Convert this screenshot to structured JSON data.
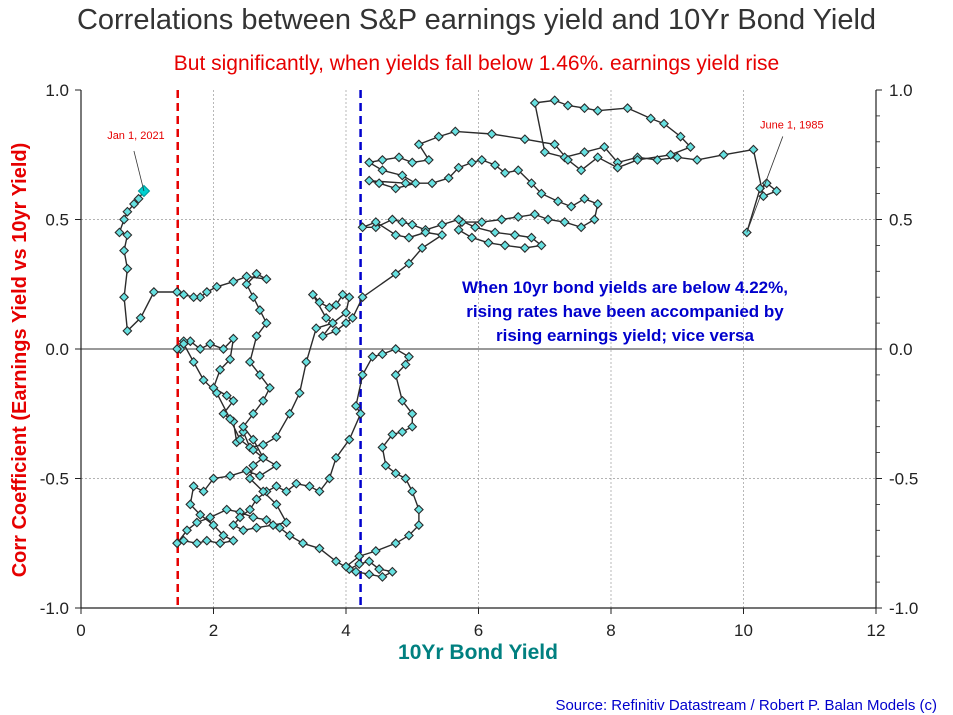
{
  "chart_data": {
    "type": "scatter",
    "title": "Correlations between S&P earnings yield and 10Yr Bond Yield",
    "subtitle": "But significantly, when yields fall below 1.46%. earnings yield rise",
    "xlabel": "10Yr Bond Yield",
    "ylabel": "Corr Coefficient (Earnings Yield vs 10yr Yield)",
    "xlim": [
      0,
      12
    ],
    "ylim": [
      -1.0,
      1.0
    ],
    "xticks": [
      "0",
      "2",
      "4",
      "6",
      "8",
      "10",
      "12"
    ],
    "yticks_left": [
      "1.0",
      "0.5",
      "0.0",
      "-0.5",
      "-1.0"
    ],
    "yticks_right": [
      "1.0",
      "0.5",
      "0.0",
      "-0.5",
      "-1.0"
    ],
    "grid": true,
    "connected": true,
    "marker": "diamond",
    "marker_color": "#66e0e0",
    "line_color": "#2b2b2b",
    "vlines": [
      {
        "x": 1.46,
        "color": "#e60000",
        "style": "dashed"
      },
      {
        "x": 4.22,
        "color": "#0000cc",
        "style": "dashed"
      }
    ],
    "annotations": [
      {
        "text": "Jan 1, 2021",
        "x": 0.95,
        "y": 0.61,
        "color": "#e60000"
      },
      {
        "text": "June 1, 1985",
        "x": 10.05,
        "y": 0.45,
        "color": "#e60000"
      }
    ],
    "note": "When 10yr bond yields are below 4.22%, rising rates have been accompanied by rising earnings yield; vice versa",
    "note_lines": [
      "When 10yr bond yields are below 4.22%,",
      "rising rates have been accompanied by",
      "rising earnings yield; vice versa"
    ],
    "note_color": "#0000cc",
    "source": "Source: Refinitiv Datastream / Robert P. Balan Models (c)",
    "series": [
      {
        "points": [
          [
            10.05,
            0.45
          ],
          [
            10.25,
            0.62
          ],
          [
            10.35,
            0.64
          ],
          [
            10.5,
            0.61
          ],
          [
            10.3,
            0.59
          ],
          [
            10.15,
            0.77
          ],
          [
            9.7,
            0.75
          ],
          [
            9.3,
            0.73
          ],
          [
            9.0,
            0.74
          ],
          [
            8.7,
            0.73
          ],
          [
            8.4,
            0.74
          ],
          [
            8.1,
            0.72
          ],
          [
            7.9,
            0.78
          ],
          [
            7.6,
            0.76
          ],
          [
            7.3,
            0.74
          ],
          [
            7.0,
            0.76
          ],
          [
            6.85,
            0.95
          ],
          [
            7.15,
            0.96
          ],
          [
            7.35,
            0.94
          ],
          [
            7.6,
            0.93
          ],
          [
            7.8,
            0.92
          ],
          [
            8.25,
            0.93
          ],
          [
            8.6,
            0.89
          ],
          [
            8.8,
            0.87
          ],
          [
            9.05,
            0.82
          ],
          [
            9.2,
            0.78
          ],
          [
            8.9,
            0.75
          ],
          [
            8.4,
            0.73
          ],
          [
            8.1,
            0.7
          ],
          [
            7.8,
            0.74
          ],
          [
            7.55,
            0.69
          ],
          [
            7.35,
            0.73
          ],
          [
            7.15,
            0.79
          ],
          [
            6.7,
            0.81
          ],
          [
            6.2,
            0.83
          ],
          [
            5.65,
            0.84
          ],
          [
            5.4,
            0.82
          ],
          [
            5.1,
            0.79
          ],
          [
            5.25,
            0.73
          ],
          [
            5.0,
            0.72
          ],
          [
            4.8,
            0.74
          ],
          [
            4.55,
            0.73
          ],
          [
            4.35,
            0.72
          ],
          [
            4.55,
            0.69
          ],
          [
            4.85,
            0.67
          ],
          [
            5.05,
            0.64
          ],
          [
            4.75,
            0.62
          ],
          [
            4.5,
            0.64
          ],
          [
            4.35,
            0.65
          ],
          [
            4.9,
            0.64
          ],
          [
            5.3,
            0.64
          ],
          [
            5.55,
            0.66
          ],
          [
            5.7,
            0.7
          ],
          [
            5.9,
            0.72
          ],
          [
            6.05,
            0.73
          ],
          [
            6.25,
            0.71
          ],
          [
            6.4,
            0.68
          ],
          [
            6.6,
            0.69
          ],
          [
            6.8,
            0.64
          ],
          [
            6.95,
            0.6
          ],
          [
            7.2,
            0.57
          ],
          [
            7.4,
            0.55
          ],
          [
            7.6,
            0.58
          ],
          [
            7.8,
            0.56
          ],
          [
            7.75,
            0.5
          ],
          [
            7.55,
            0.47
          ],
          [
            7.3,
            0.49
          ],
          [
            7.05,
            0.5
          ],
          [
            6.85,
            0.52
          ],
          [
            6.6,
            0.51
          ],
          [
            6.35,
            0.5
          ],
          [
            6.05,
            0.49
          ],
          [
            5.75,
            0.49
          ],
          [
            5.7,
            0.46
          ],
          [
            5.9,
            0.43
          ],
          [
            6.15,
            0.41
          ],
          [
            6.4,
            0.4
          ],
          [
            6.7,
            0.39
          ],
          [
            6.95,
            0.4
          ],
          [
            6.8,
            0.43
          ],
          [
            6.55,
            0.44
          ],
          [
            6.25,
            0.45
          ],
          [
            5.95,
            0.47
          ],
          [
            5.7,
            0.5
          ],
          [
            5.45,
            0.48
          ],
          [
            5.2,
            0.46
          ],
          [
            5.0,
            0.48
          ],
          [
            4.85,
            0.49
          ],
          [
            4.7,
            0.5
          ],
          [
            4.45,
            0.47
          ],
          [
            4.25,
            0.47
          ],
          [
            4.45,
            0.49
          ],
          [
            4.75,
            0.44
          ],
          [
            4.95,
            0.43
          ],
          [
            5.2,
            0.45
          ],
          [
            5.45,
            0.44
          ],
          [
            5.15,
            0.39
          ],
          [
            4.95,
            0.33
          ],
          [
            4.75,
            0.29
          ],
          [
            4.25,
            0.2
          ],
          [
            4.1,
            0.12
          ],
          [
            4.0,
            0.1
          ],
          [
            3.85,
            0.07
          ],
          [
            3.65,
            0.05
          ],
          [
            3.8,
            0.1
          ],
          [
            4.0,
            0.14
          ],
          [
            4.05,
            0.2
          ],
          [
            3.95,
            0.21
          ],
          [
            3.85,
            0.17
          ],
          [
            3.75,
            0.16
          ],
          [
            3.6,
            0.18
          ],
          [
            3.5,
            0.21
          ],
          [
            3.7,
            0.12
          ],
          [
            3.8,
            0.1
          ],
          [
            3.55,
            0.08
          ],
          [
            3.4,
            -0.05
          ],
          [
            3.3,
            -0.17
          ],
          [
            3.15,
            -0.25
          ],
          [
            2.95,
            -0.34
          ],
          [
            2.75,
            -0.37
          ],
          [
            2.55,
            -0.38
          ],
          [
            2.45,
            -0.32
          ],
          [
            2.35,
            -0.36
          ],
          [
            2.3,
            -0.28
          ],
          [
            2.15,
            -0.25
          ],
          [
            2.3,
            -0.2
          ],
          [
            2.2,
            -0.18
          ],
          [
            2.0,
            -0.15
          ],
          [
            2.1,
            -0.08
          ],
          [
            2.25,
            -0.04
          ],
          [
            2.3,
            0.04
          ],
          [
            2.15,
            0.0
          ],
          [
            1.95,
            0.02
          ],
          [
            1.8,
            0.0
          ],
          [
            1.65,
            0.03
          ],
          [
            1.55,
            0.03
          ],
          [
            1.5,
            0.0
          ],
          [
            1.45,
            0.0
          ],
          [
            1.55,
            0.02
          ],
          [
            1.7,
            -0.05
          ],
          [
            1.85,
            -0.12
          ],
          [
            2.05,
            -0.17
          ],
          [
            2.25,
            -0.27
          ],
          [
            2.4,
            -0.35
          ],
          [
            2.6,
            -0.39
          ],
          [
            2.75,
            -0.42
          ],
          [
            2.95,
            -0.45
          ],
          [
            2.7,
            -0.49
          ],
          [
            2.5,
            -0.47
          ],
          [
            2.25,
            -0.49
          ],
          [
            2.0,
            -0.5
          ],
          [
            1.85,
            -0.55
          ],
          [
            1.7,
            -0.53
          ],
          [
            1.65,
            -0.6
          ],
          [
            1.8,
            -0.64
          ],
          [
            2.0,
            -0.68
          ],
          [
            2.15,
            -0.72
          ],
          [
            2.3,
            -0.74
          ],
          [
            2.1,
            -0.75
          ],
          [
            1.9,
            -0.74
          ],
          [
            1.75,
            -0.75
          ],
          [
            1.55,
            -0.74
          ],
          [
            1.45,
            -0.75
          ],
          [
            1.6,
            -0.7
          ],
          [
            1.75,
            -0.67
          ],
          [
            1.95,
            -0.65
          ],
          [
            2.2,
            -0.62
          ],
          [
            2.4,
            -0.63
          ],
          [
            2.6,
            -0.65
          ],
          [
            2.8,
            -0.66
          ],
          [
            3.0,
            -0.69
          ],
          [
            3.15,
            -0.72
          ],
          [
            3.35,
            -0.75
          ],
          [
            3.6,
            -0.77
          ],
          [
            3.85,
            -0.82
          ],
          [
            4.05,
            -0.85
          ],
          [
            4.2,
            -0.83
          ],
          [
            4.35,
            -0.82
          ],
          [
            4.5,
            -0.85
          ],
          [
            4.7,
            -0.86
          ],
          [
            4.55,
            -0.88
          ],
          [
            4.35,
            -0.87
          ],
          [
            4.15,
            -0.86
          ],
          [
            4.0,
            -0.84
          ],
          [
            4.2,
            -0.8
          ],
          [
            4.45,
            -0.78
          ],
          [
            4.75,
            -0.75
          ],
          [
            4.95,
            -0.72
          ],
          [
            5.1,
            -0.68
          ],
          [
            5.1,
            -0.62
          ],
          [
            5.0,
            -0.55
          ],
          [
            4.9,
            -0.5
          ],
          [
            4.75,
            -0.48
          ],
          [
            4.6,
            -0.45
          ],
          [
            4.55,
            -0.38
          ],
          [
            4.7,
            -0.33
          ],
          [
            4.85,
            -0.32
          ],
          [
            5.0,
            -0.3
          ],
          [
            5.0,
            -0.25
          ],
          [
            4.85,
            -0.2
          ],
          [
            4.75,
            -0.1
          ],
          [
            4.9,
            -0.06
          ],
          [
            4.95,
            -0.03
          ],
          [
            4.75,
            0.0
          ],
          [
            4.55,
            -0.02
          ],
          [
            4.4,
            -0.03
          ],
          [
            4.25,
            -0.1
          ],
          [
            4.15,
            -0.22
          ],
          [
            4.22,
            -0.25
          ],
          [
            4.05,
            -0.35
          ],
          [
            3.85,
            -0.42
          ],
          [
            3.75,
            -0.5
          ],
          [
            3.6,
            -0.55
          ],
          [
            3.45,
            -0.53
          ],
          [
            3.25,
            -0.52
          ],
          [
            3.1,
            -0.55
          ],
          [
            2.95,
            -0.53
          ],
          [
            2.8,
            -0.55
          ],
          [
            2.65,
            -0.58
          ],
          [
            2.55,
            -0.62
          ],
          [
            2.4,
            -0.65
          ],
          [
            2.3,
            -0.68
          ],
          [
            2.45,
            -0.7
          ],
          [
            2.65,
            -0.69
          ],
          [
            2.9,
            -0.68
          ],
          [
            3.1,
            -0.67
          ],
          [
            2.95,
            -0.6
          ],
          [
            2.75,
            -0.55
          ],
          [
            2.55,
            -0.5
          ],
          [
            2.6,
            -0.45
          ],
          [
            2.75,
            -0.42
          ],
          [
            2.6,
            -0.35
          ],
          [
            2.45,
            -0.3
          ],
          [
            2.6,
            -0.25
          ],
          [
            2.75,
            -0.2
          ],
          [
            2.85,
            -0.15
          ],
          [
            2.7,
            -0.1
          ],
          [
            2.55,
            -0.05
          ],
          [
            2.65,
            0.05
          ],
          [
            2.8,
            0.1
          ],
          [
            2.7,
            0.15
          ],
          [
            2.6,
            0.2
          ],
          [
            2.5,
            0.25
          ],
          [
            2.65,
            0.29
          ],
          [
            2.8,
            0.27
          ],
          [
            2.5,
            0.28
          ],
          [
            2.3,
            0.26
          ],
          [
            2.05,
            0.24
          ],
          [
            1.9,
            0.22
          ],
          [
            1.8,
            0.2
          ],
          [
            1.7,
            0.2
          ],
          [
            1.55,
            0.21
          ],
          [
            1.45,
            0.22
          ],
          [
            1.1,
            0.22
          ],
          [
            0.9,
            0.12
          ],
          [
            0.7,
            0.07
          ],
          [
            0.65,
            0.2
          ],
          [
            0.7,
            0.31
          ],
          [
            0.65,
            0.38
          ],
          [
            0.7,
            0.44
          ],
          [
            0.58,
            0.45
          ],
          [
            0.65,
            0.5
          ],
          [
            0.7,
            0.53
          ],
          [
            0.8,
            0.56
          ],
          [
            0.87,
            0.58
          ],
          [
            0.95,
            0.61
          ]
        ]
      }
    ]
  }
}
